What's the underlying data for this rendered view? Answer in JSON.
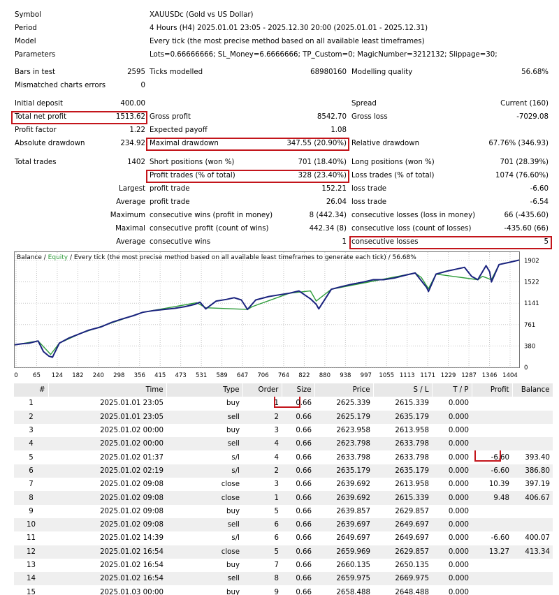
{
  "header": [
    {
      "label": "Symbol",
      "value": "XAUUSDc (Gold vs US Dollar)"
    },
    {
      "label": "Period",
      "value": "4 Hours (H4) 2025.01.01 23:05 - 2025.12.30 20:00 (2025.01.01 - 2025.12.31)"
    },
    {
      "label": "Model",
      "value": "Every tick (the most precise method based on all available least timeframes)"
    },
    {
      "label": "Parameters",
      "value": "Lots=0.66666666; SL_Money=6.6666666; TP_Custom=0; MagicNumber=3212132; Slippage=30;"
    }
  ],
  "stats": {
    "bars_label": "Bars in test",
    "bars": "2595",
    "ticks_label": "Ticks modelled",
    "ticks": "68980160",
    "quality_label": "Modelling quality",
    "quality": "56.68%",
    "mismatch_label": "Mismatched charts errors",
    "mismatch": "0",
    "initial_label": "Initial deposit",
    "initial": "400.00",
    "spread_label": "Spread",
    "spread": "Current (160)",
    "net_label": "Total net profit",
    "net": "1513.62",
    "gross_profit_label": "Gross profit",
    "gross_profit": "8542.70",
    "gross_loss_label": "Gross loss",
    "gross_loss": "-7029.08",
    "pf_label": "Profit factor",
    "pf": "1.22",
    "payoff_label": "Expected payoff",
    "payoff": "1.08",
    "abs_dd_label": "Absolute drawdown",
    "abs_dd": "234.92",
    "max_dd_label": "Maximal drawdown",
    "max_dd": "347.55 (20.90%)",
    "rel_dd_label": "Relative drawdown",
    "rel_dd": "67.76% (346.93)",
    "total_trades_label": "Total trades",
    "total_trades": "1402",
    "short_label": "Short positions (won %)",
    "short": "701 (18.40%)",
    "long_label": "Long positions (won %)",
    "long": "701 (28.39%)",
    "profit_trades_label": "Profit trades (% of total)",
    "profit_trades": "328 (23.40%)",
    "loss_trades_label": "Loss trades (% of total)",
    "loss_trades": "1074 (76.60%)",
    "largest_label": "Largest",
    "largest_profit_label": "profit trade",
    "largest_profit": "152.21",
    "largest_loss_label": "loss trade",
    "largest_loss": "-6.60",
    "average_label": "Average",
    "average_profit_label": "profit trade",
    "average_profit": "26.04",
    "average_loss_label": "loss trade",
    "average_loss": "-6.54",
    "maximum_label": "Maximum",
    "max_wins_label": "consecutive wins (profit in money)",
    "max_wins": "8 (442.34)",
    "max_losses_label": "consecutive losses (loss in money)",
    "max_losses": "66 (-435.60)",
    "maximal_label": "Maximal",
    "maximal_profit_label": "consecutive profit (count of wins)",
    "maximal_profit": "442.34 (8)",
    "maximal_loss_label": "consecutive loss (count of losses)",
    "maximal_loss": "-435.60 (66)",
    "avg2_label": "Average",
    "avg_wins_label": "consecutive wins",
    "avg_wins": "1",
    "avg_losses_label": "consecutive losses",
    "avg_losses": "5"
  },
  "chart_data": {
    "type": "line",
    "legend_balance": "Balance",
    "legend_sep": " / ",
    "legend_equity": "Equity",
    "legend_rest": " / Every tick (the most precise method based on all available least timeframes to generate each tick) / 56.68%",
    "xticks": [
      "0",
      "65",
      "124",
      "182",
      "240",
      "298",
      "356",
      "415",
      "473",
      "531",
      "589",
      "647",
      "706",
      "764",
      "822",
      "880",
      "938",
      "997",
      "1055",
      "1113",
      "1171",
      "1229",
      "1287",
      "1346",
      "1404"
    ],
    "yticks": [
      "0",
      "380",
      "761",
      "1141",
      "1522",
      "1902"
    ],
    "xlim": [
      0,
      1402
    ],
    "ylim": [
      0,
      1902
    ],
    "series": [
      {
        "name": "Balance",
        "color": "#1a237e",
        "x": [
          0,
          20,
          40,
          65,
          80,
          95,
          105,
          124,
          150,
          182,
          205,
          240,
          270,
          298,
          330,
          356,
          385,
          415,
          445,
          473,
          500,
          515,
          531,
          560,
          589,
          610,
          630,
          640,
          647,
          670,
          706,
          735,
          764,
          790,
          822,
          838,
          845,
          880,
          910,
          938,
          970,
          997,
          1025,
          1055,
          1085,
          1113,
          1135,
          1145,
          1150,
          1171,
          1200,
          1229,
          1250,
          1270,
          1287,
          1310,
          1320,
          1325,
          1346,
          1375,
          1402
        ],
        "y": [
          400,
          420,
          430,
          470,
          280,
          200,
          180,
          430,
          520,
          600,
          660,
          720,
          800,
          860,
          920,
          980,
          1010,
          1030,
          1050,
          1080,
          1120,
          1160,
          1040,
          1180,
          1210,
          1240,
          1200,
          1100,
          1030,
          1200,
          1260,
          1290,
          1320,
          1360,
          1220,
          1120,
          1040,
          1390,
          1440,
          1480,
          1520,
          1560,
          1560,
          1590,
          1640,
          1680,
          1500,
          1420,
          1350,
          1660,
          1710,
          1750,
          1780,
          1620,
          1560,
          1810,
          1700,
          1520,
          1830,
          1870,
          1910
        ]
      },
      {
        "name": "Equity",
        "color": "#2e9c3a",
        "x": [
          0,
          65,
          90,
          100,
          124,
          182,
          356,
          506,
          531,
          647,
          660,
          764,
          822,
          838,
          880,
          1113,
          1130,
          1150,
          1171,
          1287,
          1300,
          1325,
          1346,
          1402
        ],
        "y": [
          400,
          470,
          300,
          230,
          430,
          600,
          980,
          1150,
          1060,
          1030,
          1080,
          1320,
          1360,
          1180,
          1390,
          1680,
          1600,
          1400,
          1660,
          1560,
          1620,
          1560,
          1830,
          1910
        ]
      }
    ]
  },
  "table": {
    "headers": [
      "#",
      "Time",
      "Type",
      "Order",
      "Size",
      "Price",
      "S / L",
      "T / P",
      "Profit",
      "Balance"
    ],
    "rows": [
      [
        "1",
        "2025.01.01 23:05",
        "buy",
        "1",
        "0.66",
        "2625.339",
        "2615.339",
        "0.000",
        "",
        ""
      ],
      [
        "2",
        "2025.01.01 23:05",
        "sell",
        "2",
        "0.66",
        "2625.179",
        "2635.179",
        "0.000",
        "",
        ""
      ],
      [
        "3",
        "2025.01.02 00:00",
        "buy",
        "3",
        "0.66",
        "2623.958",
        "2613.958",
        "0.000",
        "",
        ""
      ],
      [
        "4",
        "2025.01.02 00:00",
        "sell",
        "4",
        "0.66",
        "2623.798",
        "2633.798",
        "0.000",
        "",
        ""
      ],
      [
        "5",
        "2025.01.02 01:37",
        "s/l",
        "4",
        "0.66",
        "2633.798",
        "2633.798",
        "0.000",
        "-6.60",
        "393.40"
      ],
      [
        "6",
        "2025.01.02 02:19",
        "s/l",
        "2",
        "0.66",
        "2635.179",
        "2635.179",
        "0.000",
        "-6.60",
        "386.80"
      ],
      [
        "7",
        "2025.01.02 09:08",
        "close",
        "3",
        "0.66",
        "2639.692",
        "2613.958",
        "0.000",
        "10.39",
        "397.19"
      ],
      [
        "8",
        "2025.01.02 09:08",
        "close",
        "1",
        "0.66",
        "2639.692",
        "2615.339",
        "0.000",
        "9.48",
        "406.67"
      ],
      [
        "9",
        "2025.01.02 09:08",
        "buy",
        "5",
        "0.66",
        "2639.857",
        "2629.857",
        "0.000",
        "",
        ""
      ],
      [
        "10",
        "2025.01.02 09:08",
        "sell",
        "6",
        "0.66",
        "2639.697",
        "2649.697",
        "0.000",
        "",
        ""
      ],
      [
        "11",
        "2025.01.02 14:39",
        "s/l",
        "6",
        "0.66",
        "2649.697",
        "2649.697",
        "0.000",
        "-6.60",
        "400.07"
      ],
      [
        "12",
        "2025.01.02 16:54",
        "close",
        "5",
        "0.66",
        "2659.969",
        "2629.857",
        "0.000",
        "13.27",
        "413.34"
      ],
      [
        "13",
        "2025.01.02 16:54",
        "buy",
        "7",
        "0.66",
        "2660.135",
        "2650.135",
        "0.000",
        "",
        ""
      ],
      [
        "14",
        "2025.01.02 16:54",
        "sell",
        "8",
        "0.66",
        "2659.975",
        "2669.975",
        "0.000",
        "",
        ""
      ],
      [
        "15",
        "2025.01.03 00:00",
        "buy",
        "9",
        "0.66",
        "2658.488",
        "2648.488",
        "0.000",
        "",
        ""
      ]
    ]
  },
  "colors": {
    "highlight": "#c3151b",
    "balance": "#1a237e",
    "equity": "#2e9c3a",
    "header_bg": "#e8e8e8",
    "row_alt": "#efefef"
  }
}
